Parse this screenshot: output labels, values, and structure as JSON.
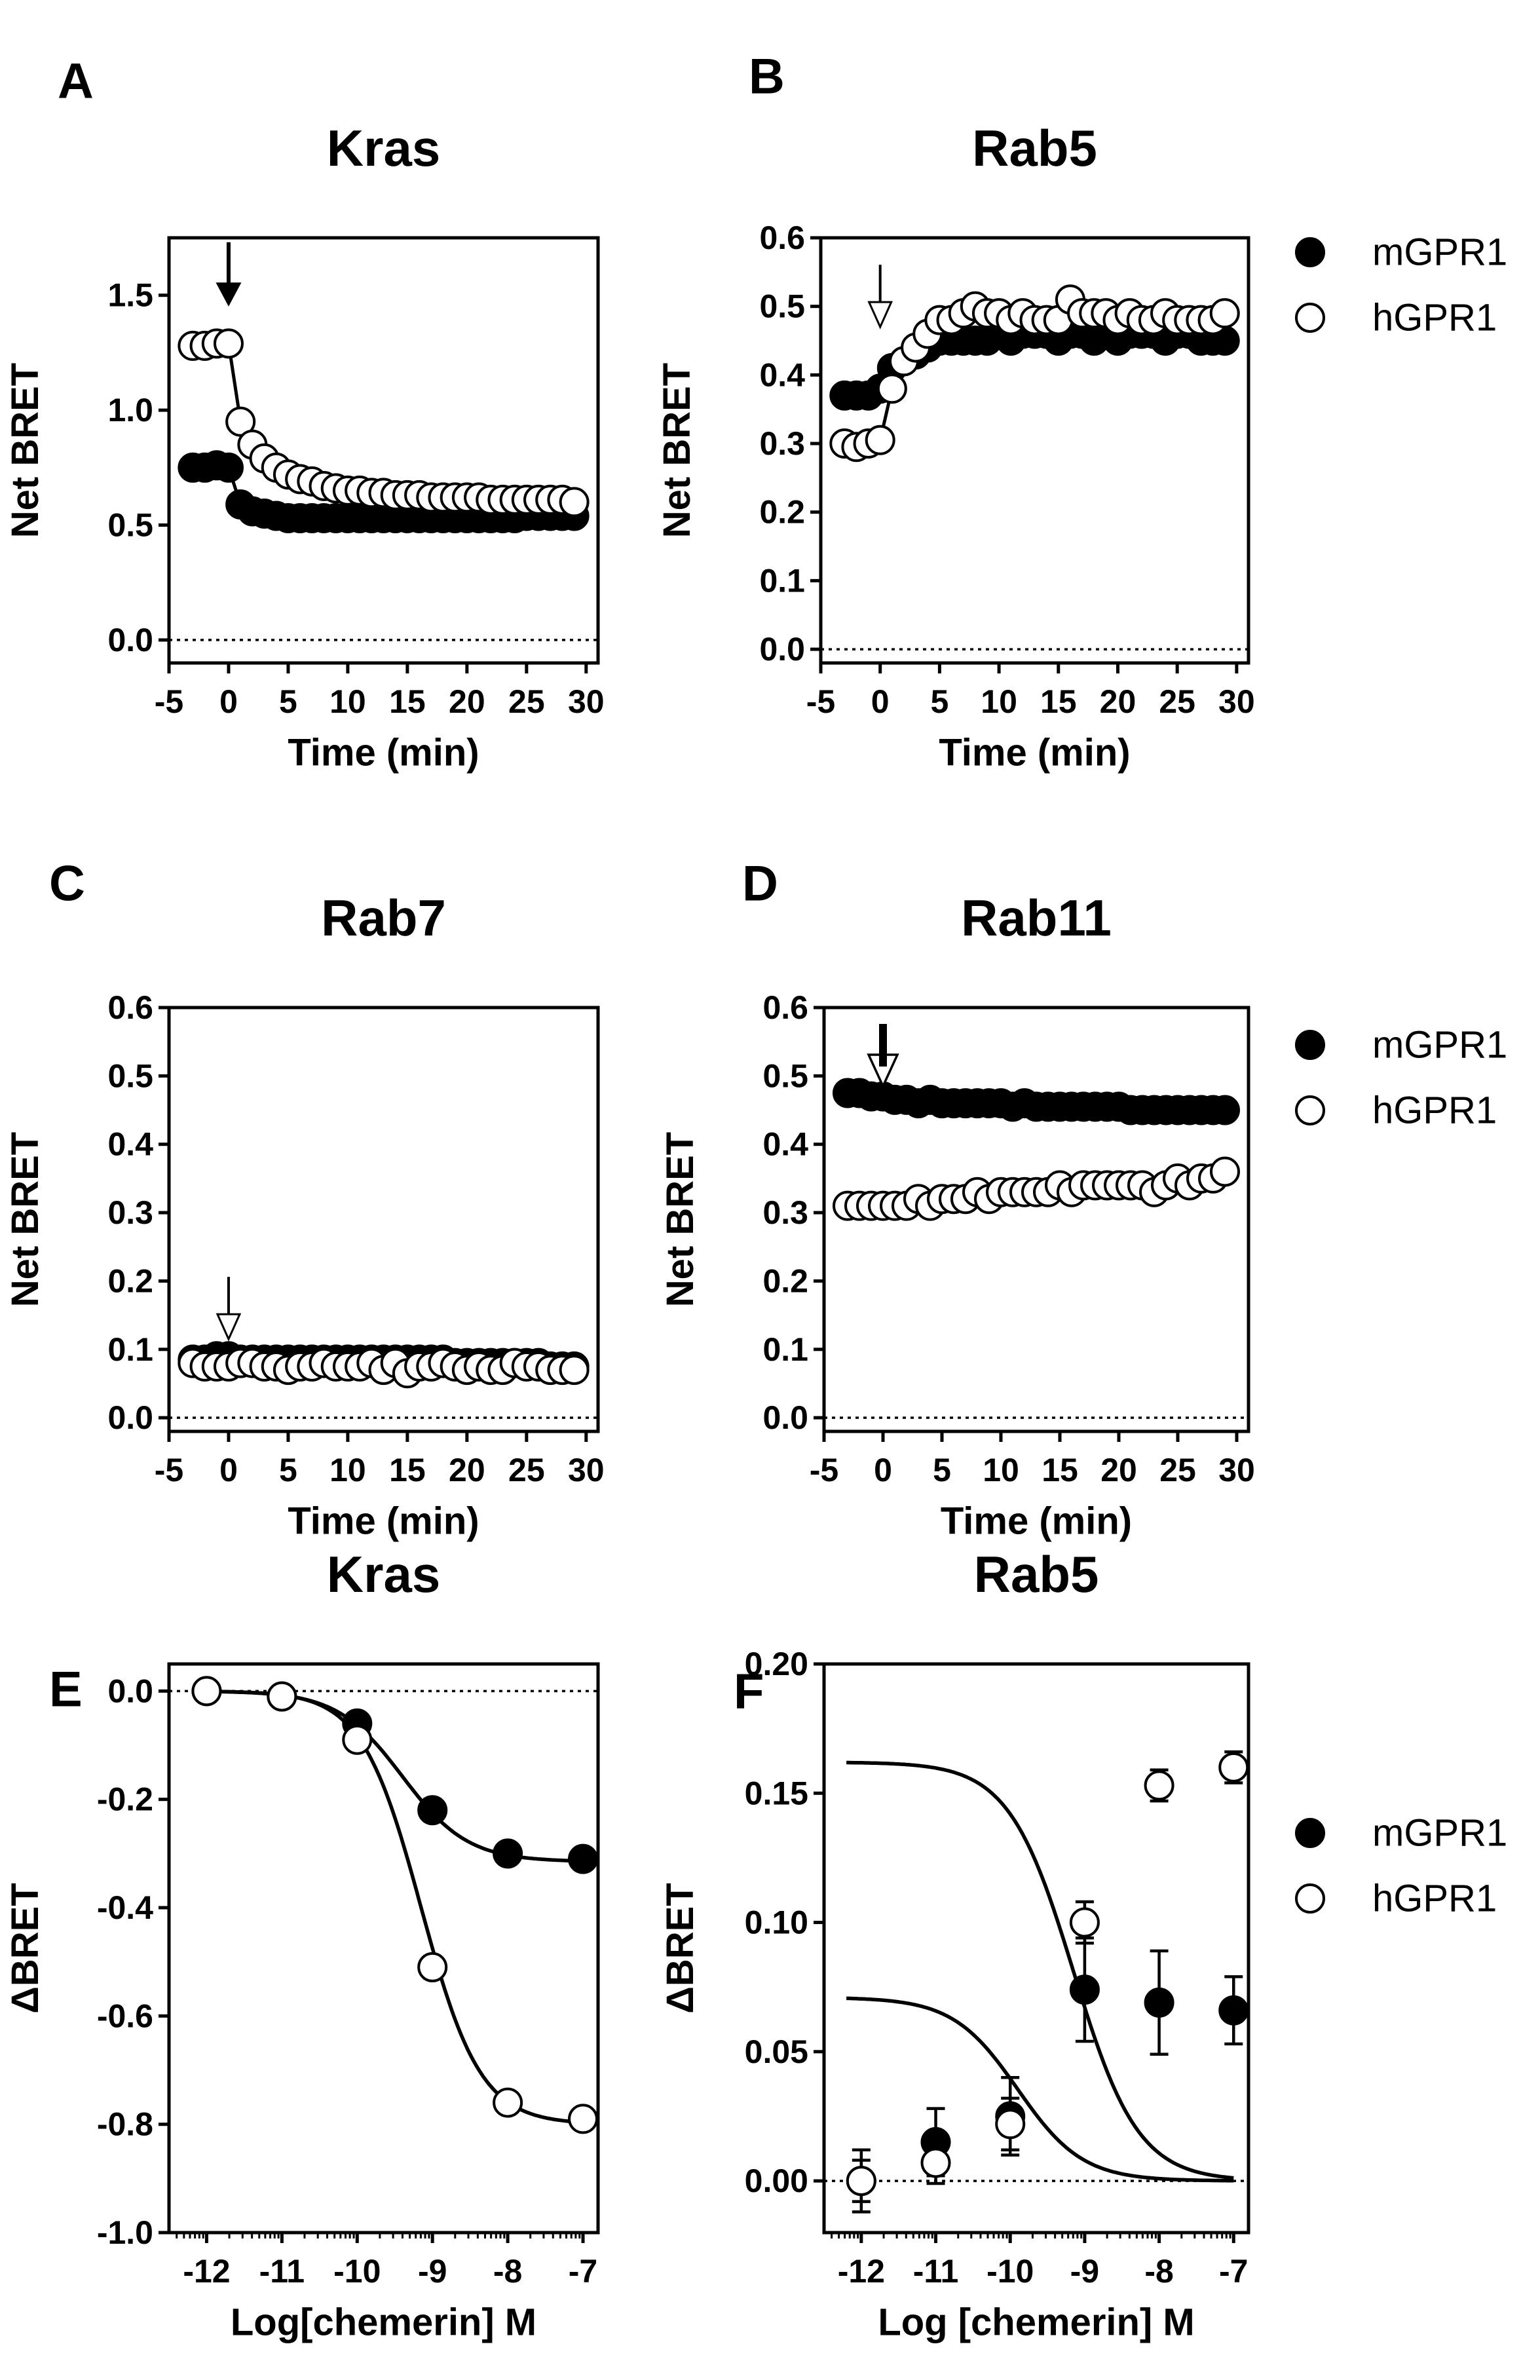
{
  "legend_labels": {
    "filled": "mGPR1",
    "open": "hGPR1"
  },
  "chart_data": [
    {
      "panel": "A",
      "type": "scatter",
      "title": "Kras",
      "xlabel": "Time (min)",
      "ylabel": "Net BRET",
      "xlim": [
        -5,
        31
      ],
      "ylim": [
        -0.1,
        1.75
      ],
      "xticks": [
        "-5",
        "0",
        "5",
        "10",
        "15",
        "20",
        "25",
        "30"
      ],
      "yticks": [
        "0.0",
        "0.5",
        "1.0",
        "1.5"
      ],
      "xtick_values": [
        -5,
        0,
        5,
        10,
        15,
        20,
        25,
        30
      ],
      "ytick_values": [
        0,
        0.5,
        1.0,
        1.5
      ],
      "zero_line": "dotted",
      "legend": false,
      "arrow": {
        "x": 0,
        "style": "filled"
      },
      "x": [
        -3,
        -2,
        -1,
        0,
        1,
        2,
        3,
        4,
        5,
        6,
        7,
        8,
        9,
        10,
        11,
        12,
        13,
        14,
        15,
        16,
        17,
        18,
        19,
        20,
        21,
        22,
        23,
        24,
        25,
        26,
        27,
        28,
        29
      ],
      "series": [
        {
          "name": "mGPR1",
          "marker": "filled",
          "values": [
            0.75,
            0.75,
            0.76,
            0.75,
            0.59,
            0.56,
            0.55,
            0.54,
            0.53,
            0.53,
            0.53,
            0.53,
            0.53,
            0.53,
            0.53,
            0.53,
            0.53,
            0.53,
            0.53,
            0.53,
            0.53,
            0.53,
            0.53,
            0.53,
            0.53,
            0.53,
            0.53,
            0.53,
            0.54,
            0.54,
            0.54,
            0.54,
            0.54
          ]
        },
        {
          "name": "hGPR1",
          "marker": "open",
          "values": [
            1.28,
            1.28,
            1.29,
            1.29,
            0.95,
            0.85,
            0.79,
            0.75,
            0.72,
            0.7,
            0.69,
            0.67,
            0.66,
            0.65,
            0.65,
            0.64,
            0.64,
            0.63,
            0.63,
            0.63,
            0.62,
            0.62,
            0.62,
            0.62,
            0.62,
            0.61,
            0.61,
            0.61,
            0.61,
            0.61,
            0.61,
            0.61,
            0.6
          ]
        }
      ]
    },
    {
      "panel": "B",
      "type": "scatter",
      "title": "Rab5",
      "xlabel": "Time (min)",
      "ylabel": "Net BRET",
      "xlim": [
        -5,
        31
      ],
      "ylim": [
        -0.02,
        0.6
      ],
      "xticks": [
        "-5",
        "0",
        "5",
        "10",
        "15",
        "20",
        "25",
        "30"
      ],
      "yticks": [
        "0.0",
        "0.1",
        "0.2",
        "0.3",
        "0.4",
        "0.5",
        "0.6"
      ],
      "xtick_values": [
        -5,
        0,
        5,
        10,
        15,
        20,
        25,
        30
      ],
      "ytick_values": [
        0,
        0.1,
        0.2,
        0.3,
        0.4,
        0.5,
        0.6
      ],
      "zero_line": "dotted",
      "legend": true,
      "arrow": {
        "x": 0,
        "style": "open"
      },
      "x": [
        -3,
        -2,
        -1,
        0,
        1,
        2,
        3,
        4,
        5,
        6,
        7,
        8,
        9,
        10,
        11,
        12,
        13,
        14,
        15,
        16,
        17,
        18,
        19,
        20,
        21,
        22,
        23,
        24,
        25,
        26,
        27,
        28,
        29
      ],
      "series": [
        {
          "name": "mGPR1",
          "marker": "filled",
          "values": [
            0.37,
            0.37,
            0.37,
            0.38,
            0.41,
            0.42,
            0.43,
            0.44,
            0.45,
            0.45,
            0.45,
            0.45,
            0.45,
            0.46,
            0.45,
            0.46,
            0.46,
            0.46,
            0.45,
            0.46,
            0.46,
            0.45,
            0.46,
            0.45,
            0.46,
            0.46,
            0.46,
            0.45,
            0.46,
            0.46,
            0.45,
            0.45,
            0.45
          ]
        },
        {
          "name": "hGPR1",
          "marker": "open",
          "values": [
            0.3,
            0.295,
            0.3,
            0.305,
            0.38,
            0.42,
            0.44,
            0.46,
            0.48,
            0.48,
            0.49,
            0.5,
            0.49,
            0.49,
            0.48,
            0.49,
            0.48,
            0.48,
            0.48,
            0.51,
            0.49,
            0.49,
            0.49,
            0.48,
            0.49,
            0.48,
            0.48,
            0.49,
            0.48,
            0.48,
            0.48,
            0.48,
            0.49
          ]
        }
      ]
    },
    {
      "panel": "C",
      "type": "scatter",
      "title": "Rab7",
      "xlabel": "Time (min)",
      "ylabel": "Net BRET",
      "xlim": [
        -5,
        31
      ],
      "ylim": [
        -0.02,
        0.6
      ],
      "xticks": [
        "-5",
        "0",
        "5",
        "10",
        "15",
        "20",
        "25",
        "30"
      ],
      "yticks": [
        "0.0",
        "0.1",
        "0.2",
        "0.3",
        "0.4",
        "0.5",
        "0.6"
      ],
      "xtick_values": [
        -5,
        0,
        5,
        10,
        15,
        20,
        25,
        30
      ],
      "ytick_values": [
        0,
        0.1,
        0.2,
        0.3,
        0.4,
        0.5,
        0.6
      ],
      "zero_line": "dotted",
      "legend": false,
      "arrow": {
        "x": 0,
        "style": "open"
      },
      "x": [
        -3,
        -2,
        -1,
        0,
        1,
        2,
        3,
        4,
        5,
        6,
        7,
        8,
        9,
        10,
        11,
        12,
        13,
        14,
        15,
        16,
        17,
        18,
        19,
        20,
        21,
        22,
        23,
        24,
        25,
        26,
        27,
        28,
        29
      ],
      "series": [
        {
          "name": "mGPR1",
          "marker": "filled",
          "values": [
            0.085,
            0.085,
            0.09,
            0.09,
            0.085,
            0.085,
            0.085,
            0.085,
            0.085,
            0.085,
            0.085,
            0.085,
            0.085,
            0.085,
            0.085,
            0.085,
            0.085,
            0.085,
            0.085,
            0.085,
            0.085,
            0.085,
            0.08,
            0.08,
            0.08,
            0.08,
            0.08,
            0.08,
            0.08,
            0.08,
            0.075,
            0.075,
            0.075
          ]
        },
        {
          "name": "hGPR1",
          "marker": "open",
          "values": [
            0.08,
            0.075,
            0.075,
            0.075,
            0.08,
            0.08,
            0.075,
            0.075,
            0.07,
            0.075,
            0.075,
            0.08,
            0.075,
            0.075,
            0.075,
            0.08,
            0.07,
            0.08,
            0.065,
            0.075,
            0.075,
            0.08,
            0.075,
            0.07,
            0.075,
            0.07,
            0.07,
            0.08,
            0.075,
            0.075,
            0.07,
            0.07,
            0.07
          ]
        }
      ]
    },
    {
      "panel": "D",
      "type": "scatter",
      "title": "Rab11",
      "xlabel": "Time (min)",
      "ylabel": "Net BRET",
      "xlim": [
        -5,
        31
      ],
      "ylim": [
        -0.02,
        0.6
      ],
      "xticks": [
        "-5",
        "0",
        "5",
        "10",
        "15",
        "20",
        "25",
        "30"
      ],
      "yticks": [
        "0.0",
        "0.1",
        "0.2",
        "0.3",
        "0.4",
        "0.5",
        "0.6"
      ],
      "xtick_values": [
        -5,
        0,
        5,
        10,
        15,
        20,
        25,
        30
      ],
      "ytick_values": [
        0,
        0.1,
        0.2,
        0.3,
        0.4,
        0.5,
        0.6
      ],
      "zero_line": "dotted",
      "legend": true,
      "arrow": {
        "x": 0,
        "style": "both"
      },
      "x": [
        -3,
        -2,
        -1,
        0,
        1,
        2,
        3,
        4,
        5,
        6,
        7,
        8,
        9,
        10,
        11,
        12,
        13,
        14,
        15,
        16,
        17,
        18,
        19,
        20,
        21,
        22,
        23,
        24,
        25,
        26,
        27,
        28,
        29
      ],
      "series": [
        {
          "name": "mGPR1",
          "marker": "filled",
          "values": [
            0.475,
            0.475,
            0.47,
            0.47,
            0.465,
            0.465,
            0.46,
            0.465,
            0.46,
            0.46,
            0.46,
            0.46,
            0.46,
            0.46,
            0.455,
            0.46,
            0.455,
            0.455,
            0.455,
            0.455,
            0.455,
            0.455,
            0.455,
            0.455,
            0.45,
            0.45,
            0.45,
            0.45,
            0.45,
            0.45,
            0.45,
            0.45,
            0.45
          ]
        },
        {
          "name": "hGPR1",
          "marker": "open",
          "values": [
            0.31,
            0.31,
            0.31,
            0.31,
            0.31,
            0.31,
            0.32,
            0.31,
            0.32,
            0.32,
            0.32,
            0.33,
            0.32,
            0.33,
            0.33,
            0.33,
            0.33,
            0.33,
            0.34,
            0.33,
            0.34,
            0.34,
            0.34,
            0.34,
            0.34,
            0.34,
            0.33,
            0.34,
            0.35,
            0.34,
            0.35,
            0.35,
            0.36
          ]
        }
      ]
    },
    {
      "panel": "E",
      "type": "scatter",
      "title": "Kras",
      "xlabel": "Log[chemerin] M",
      "ylabel": "ΔBRET",
      "xlim": [
        -12.5,
        -6.8
      ],
      "ylim": [
        -1.0,
        0.05
      ],
      "xticks": [
        "-12",
        "-11",
        "-10",
        "-9",
        "-8",
        "-7"
      ],
      "yticks": [
        "0.0",
        "-0.2",
        "-0.4",
        "-0.6",
        "-0.8",
        "-1.0"
      ],
      "xtick_values": [
        -12,
        -11,
        -10,
        -9,
        -8,
        -7
      ],
      "ytick_values": [
        0,
        -0.2,
        -0.4,
        -0.6,
        -0.8,
        -1.0
      ],
      "zero_line": "dotted",
      "legend": false,
      "minor_log_ticks": true,
      "x": [
        -12,
        -11,
        -10,
        -9,
        -8,
        -7
      ],
      "series": [
        {
          "name": "mGPR1",
          "marker": "filled",
          "values": [
            0.0,
            -0.01,
            -0.06,
            -0.22,
            -0.3,
            -0.31
          ],
          "errors": [
            0.01,
            0.01,
            0.01,
            0.02,
            0.01,
            0.01
          ],
          "fit": {
            "bottom": -0.315,
            "top": 0.0,
            "logec50": -9.4,
            "hill": 1.0
          }
        },
        {
          "name": "hGPR1",
          "marker": "open",
          "values": [
            0.0,
            -0.01,
            -0.09,
            -0.51,
            -0.76,
            -0.79
          ],
          "errors": [
            0.01,
            0.01,
            0.02,
            0.02,
            0.01,
            0.01
          ],
          "fit": {
            "bottom": -0.8,
            "top": 0.0,
            "logec50": -9.15,
            "hill": 1.1
          }
        }
      ]
    },
    {
      "panel": "F",
      "type": "scatter",
      "title": "Rab5",
      "xlabel": "Log [chemerin] M",
      "ylabel": "ΔBRET",
      "xlim": [
        -12.5,
        -6.8
      ],
      "ylim": [
        -0.02,
        0.2
      ],
      "xticks": [
        "-12",
        "-11",
        "-10",
        "-9",
        "-8",
        "-7"
      ],
      "yticks": [
        "0.00",
        "0.05",
        "0.10",
        "0.15",
        "0.20"
      ],
      "xtick_values": [
        -12,
        -11,
        -10,
        -9,
        -8,
        -7
      ],
      "ytick_values": [
        0,
        0.05,
        0.1,
        0.15,
        0.2
      ],
      "zero_line": "dotted",
      "legend": true,
      "minor_log_ticks": true,
      "x": [
        -12,
        -11,
        -10,
        -9,
        -8,
        -7
      ],
      "series": [
        {
          "name": "mGPR1",
          "marker": "filled",
          "values": [
            0.0,
            0.015,
            0.025,
            0.074,
            0.069,
            0.066
          ],
          "errors": [
            0.012,
            0.013,
            0.015,
            0.02,
            0.02,
            0.013
          ],
          "fit": {
            "bottom": 0.0,
            "top": 0.071,
            "logec50": -9.9,
            "hill": 1.0
          }
        },
        {
          "name": "hGPR1",
          "marker": "open",
          "values": [
            0.0,
            0.007,
            0.022,
            0.1,
            0.153,
            0.16
          ],
          "errors": [
            0.008,
            0.008,
            0.01,
            0.008,
            0.006,
            0.006
          ],
          "fit": {
            "bottom": 0.0,
            "top": 0.162,
            "logec50": -9.15,
            "hill": 1.0
          }
        }
      ]
    }
  ]
}
